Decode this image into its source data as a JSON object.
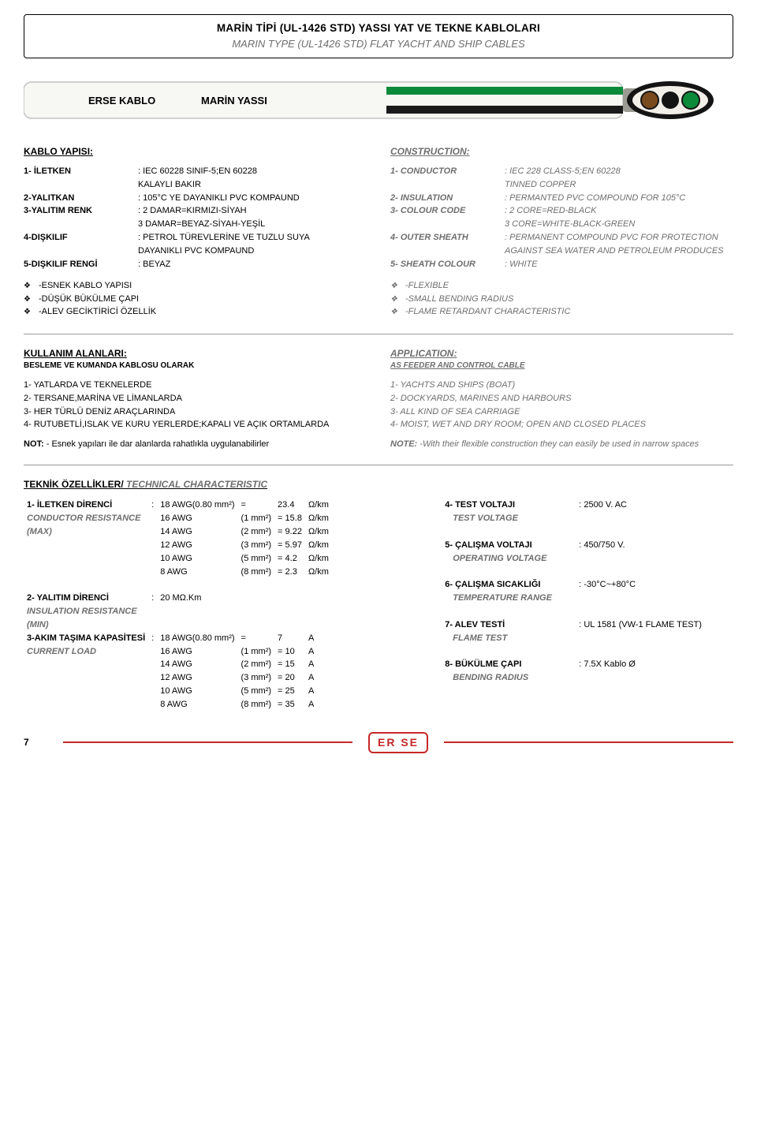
{
  "title": {
    "main": "MARİN TİPİ (UL-1426 STD) YASSI YAT VE TEKNE KABLOLARI",
    "sub": "MARIN TYPE (UL-1426 STD) FLAT YACHT AND SHIP CABLES"
  },
  "illus": {
    "label_left": "ERSE KABLO",
    "label_right": "MARİN YASSI",
    "body_fill": "#f7f7f4",
    "body_stroke": "#c4c4c4",
    "stripe_green": "#0b8a3a",
    "stripe_black": "#1a1a1a",
    "stub_gray": "#9b9b93",
    "end_outer": "#141414",
    "end_inner_fill": "#f2efe8",
    "core_brown": "#7a4a1f",
    "core_black": "#141414",
    "core_green": "#0b8a3a"
  },
  "kablo": {
    "heading": "KABLO YAPISI:",
    "rows": [
      {
        "l": "1- İLETKEN",
        "v": ": IEC 60228 SINIF-5;EN 60228"
      },
      {
        "l": "",
        "v": "  KALAYLI BAKIR"
      },
      {
        "l": "2-YALITKAN",
        "v": ": 105°C YE DAYANIKLI PVC KOMPAUND"
      },
      {
        "l": "3-YALITIM RENK",
        "v": ": 2 DAMAR=KIRMIZI-SİYAH"
      },
      {
        "l": "",
        "v": "  3 DAMAR=BEYAZ-SİYAH-YEŞİL"
      },
      {
        "l": "4-DIŞKILIF",
        "v": ": PETROL TÜREVLERİNE VE TUZLU SUYA"
      },
      {
        "l": "",
        "v": "  DAYANIKLI PVC KOMPAUND"
      },
      {
        "l": "5-DIŞKILIF RENGİ",
        "v": ": BEYAZ"
      }
    ],
    "bullets": [
      "-ESNEK KABLO YAPISI",
      "-DÜŞÜK BÜKÜLME ÇAPI",
      "-ALEV GECİKTİRİCİ ÖZELLİK"
    ]
  },
  "construction": {
    "heading": "CONSTRUCTION:",
    "rows": [
      {
        "l": "1- CONDUCTOR",
        "v": ": IEC 228 CLASS-5;EN 60228"
      },
      {
        "l": "",
        "v": "  TINNED COPPER"
      },
      {
        "l": "2- INSULATION",
        "v": ": PERMANTED PVC COMPOUND FOR 105°C"
      },
      {
        "l": "3- COLOUR CODE",
        "v": ": 2 CORE=RED-BLACK"
      },
      {
        "l": "",
        "v": "  3 CORE=WHITE-BLACK-GREEN"
      },
      {
        "l": "4- OUTER SHEATH",
        "v": ": PERMANENT COMPOUND PVC FOR PROTECTION"
      },
      {
        "l": "",
        "v": "  AGAINST SEA WATER AND PETROLEUM PRODUCES"
      },
      {
        "l": "5- SHEATH COLOUR",
        "v": ": WHITE"
      }
    ],
    "bullets": [
      "-FLEXIBLE",
      "-SMALL BENDING RADIUS",
      "-FLAME RETARDANT CHARACTERISTIC"
    ]
  },
  "usage": {
    "heading": "KULLANIM ALANLARI:",
    "sub": "BESLEME VE KUMANDA KABLOSU OLARAK",
    "items": [
      "1- YATLARDA VE TEKNELERDE",
      "2- TERSANE,MARİNA VE LİMANLARDA",
      "3- HER TÜRLÜ DENİZ ARAÇLARINDA",
      "4- RUTUBETLİ,ISLAK VE KURU YERLERDE;KAPALI VE AÇIK ORTAMLARDA"
    ],
    "note_l": "NOT:",
    "note_v": " - Esnek yapıları ile dar alanlarda rahatlıkla uygulanabilirler"
  },
  "application": {
    "heading": "APPLICATION:",
    "sub": "AS FEEDER AND CONTROL CABLE",
    "items": [
      "1- YACHTS AND SHIPS (BOAT)",
      "2- DOCKYARDS, MARINES AND HARBOURS",
      "3- ALL KIND OF SEA CARRIAGE",
      "4- MOIST, WET AND DRY ROOM; OPEN AND CLOSED PLACES"
    ],
    "note_l": "NOTE:",
    "note_v": " -With their flexible construction they can easily be used in narrow spaces"
  },
  "tech": {
    "title_a": "TEKNİK ÖZELLİKLER/",
    "title_b": " TECHNICAL  CHARACTERISTIC",
    "left": {
      "r1_l": "1- İLETKEN DİRENCİ",
      "r1_sub": "CONDUCTOR RESISTANCE",
      "r1_max": "(MAX)",
      "r1_col": ":",
      "awg": [
        [
          "18 AWG",
          "(0.80 mm²)",
          "=",
          "23.4",
          "Ω/km"
        ],
        [
          "16 AWG",
          "(1 mm²)",
          "=",
          "15.8",
          "Ω/km"
        ],
        [
          "14 AWG",
          "(2 mm²)",
          "=",
          "9.22",
          "Ω/km"
        ],
        [
          "12 AWG",
          "(3 mm²)",
          "=",
          "5.97",
          "Ω/km"
        ],
        [
          "10 AWG",
          "(5 mm²)",
          "=",
          "4.2",
          "Ω/km"
        ],
        [
          "8  AWG",
          "(8 mm²)",
          "=",
          "2.3",
          "Ω/km"
        ]
      ],
      "r2_l": "2- YALITIM DİRENCİ",
      "r2_sub": "INSULATION RESISTANCE",
      "r2_min": "(MIN)",
      "r2_v": "20  MΩ.Km",
      "r3_l": "3-AKIM TAŞIMA KAPASİTESİ",
      "r3_sub": "CURRENT LOAD",
      "amps": [
        [
          "18 AWG",
          "(0.80 mm²)",
          "=",
          "7",
          "A"
        ],
        [
          "16 AWG",
          "(1 mm²)",
          "=",
          "10",
          "A"
        ],
        [
          "14 AWG",
          "(2 mm²)",
          "=",
          "15",
          "A"
        ],
        [
          "12 AWG",
          "(3 mm²)",
          "=",
          "20",
          "A"
        ],
        [
          "10 AWG",
          "(5 mm²)",
          "=",
          "25",
          "A"
        ],
        [
          "8  AWG",
          "(8 mm²)",
          "=",
          "35",
          "A"
        ]
      ]
    },
    "right": {
      "rows": [
        {
          "l": "4- TEST VOLTAJI",
          "s": "TEST VOLTAGE",
          "v": ": 2500 V.  AC"
        },
        {
          "l": "5- ÇALIŞMA VOLTAJI",
          "s": "OPERATING VOLTAGE",
          "v": ": 450/750 V."
        },
        {
          "l": "6- ÇALIŞMA SICAKLIĞI",
          "s": "TEMPERATURE RANGE",
          "v": ": -30°C~+80°C"
        },
        {
          "l": "7- ALEV TESTİ",
          "s": "FLAME TEST",
          "v": ": UL 1581 (VW-1 FLAME TEST)"
        },
        {
          "l": "8- BÜKÜLME ÇAPI",
          "s": "BENDING RADIUS",
          "v": ": 7.5X Kablo Ø"
        }
      ]
    }
  },
  "footer": {
    "page": "7",
    "logo": "ER  SE"
  },
  "colors": {
    "brand_red": "#c62828",
    "muted_gray": "#6e6e6e"
  }
}
